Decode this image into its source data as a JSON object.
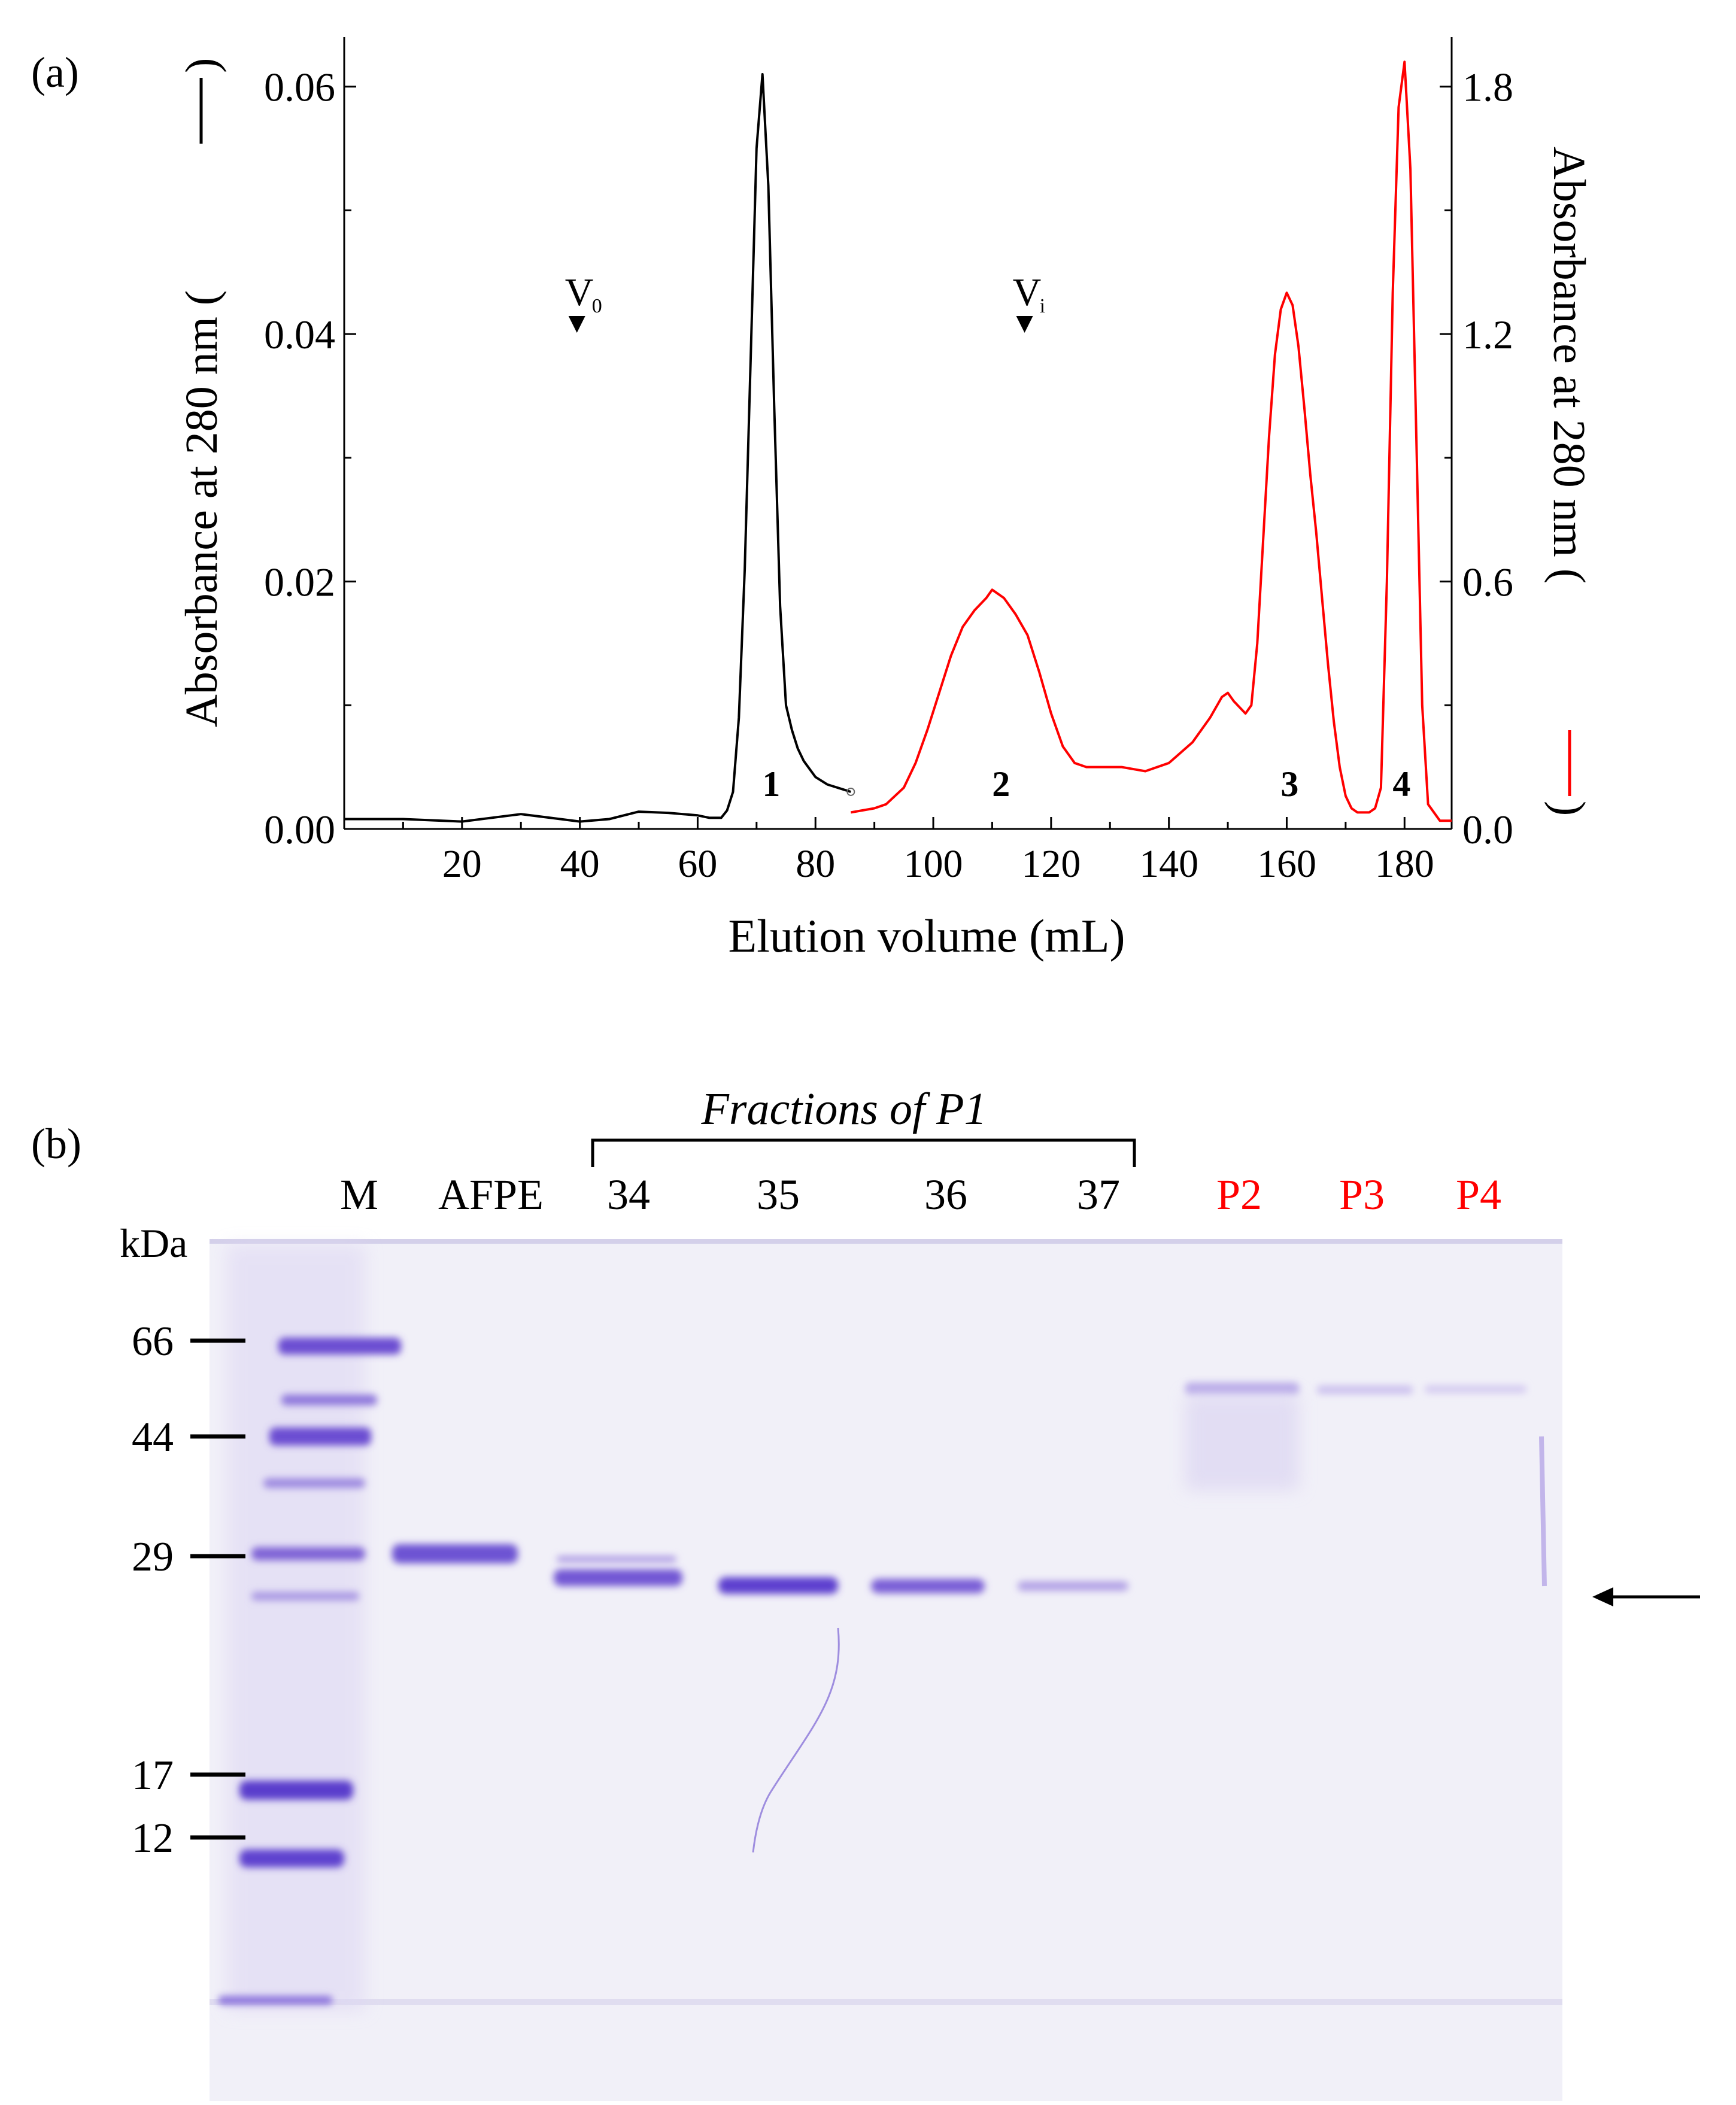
{
  "panel_a": {
    "label": "(a)",
    "left_axis_label": "Absorbance at 280 nm (",
    "left_axis_close": ")",
    "right_axis_label": "Absorbance at 280 nm (",
    "right_axis_close": ")",
    "x_axis_label": "Elution volume (mL)",
    "left_ticks": [
      "0.00",
      "0.02",
      "0.04",
      "0.06"
    ],
    "right_ticks": [
      "0.0",
      "0.6",
      "1.2",
      "1.8"
    ],
    "x_ticks": [
      "20",
      "40",
      "60",
      "80",
      "100",
      "120",
      "140",
      "160",
      "180"
    ],
    "markers": [
      {
        "label": "V",
        "sub": "0",
        "x": 39.5
      },
      {
        "label": "V",
        "sub": "i",
        "x": 115.5
      }
    ],
    "peak_labels": [
      {
        "label": "1",
        "x": 72.5
      },
      {
        "label": "2",
        "x": 111.5
      },
      {
        "label": "3",
        "x": 160.5
      },
      {
        "label": "4",
        "x": 179.5
      }
    ],
    "colors": {
      "series1": "#000000",
      "series2": "#ff0000",
      "axis": "#000000"
    }
  },
  "panel_b": {
    "label": "(b)",
    "bracket_label": "Fractions of P1",
    "kda_label": "kDa",
    "lanes": [
      {
        "label": "M",
        "color": "#000000"
      },
      {
        "label": "AFPE",
        "color": "#000000"
      },
      {
        "label": "34",
        "color": "#000000"
      },
      {
        "label": "35",
        "color": "#000000"
      },
      {
        "label": "36",
        "color": "#000000"
      },
      {
        "label": "37",
        "color": "#000000"
      },
      {
        "label": "P2",
        "color": "#ff0000"
      },
      {
        "label": "P3",
        "color": "#ff0000"
      },
      {
        "label": "P4",
        "color": "#ff0000"
      }
    ],
    "markers_kda": [
      "66",
      "44",
      "29",
      "17",
      "12"
    ],
    "arrow_icon": "left-arrow-icon",
    "gel_color": "#f2f1f8",
    "band_color": "#6a4fd0"
  },
  "chart_data": {
    "type": "line",
    "title": "",
    "xlabel": "Elution volume (mL)",
    "ylabel": "Absorbance at 280 nm",
    "y2label": "Absorbance at 280 nm",
    "xlim": [
      0,
      188
    ],
    "ylim": [
      0,
      0.064
    ],
    "y2lim": [
      0,
      1.92
    ],
    "series": [
      {
        "name": "Absorbance at 280 nm (black, left axis)",
        "axis": "left",
        "color": "#000000",
        "x": [
          0,
          10,
          20,
          30,
          35,
          40,
          45,
          50,
          55,
          60,
          62,
          64,
          65,
          66,
          67,
          68,
          69,
          70,
          71,
          72,
          73,
          74,
          75,
          76,
          77,
          78,
          80,
          82,
          84,
          86
        ],
        "y": [
          0.0008,
          0.0008,
          0.0006,
          0.0012,
          0.0009,
          0.0006,
          0.0008,
          0.0014,
          0.0013,
          0.0011,
          0.0009,
          0.0009,
          0.0015,
          0.003,
          0.009,
          0.021,
          0.038,
          0.055,
          0.061,
          0.052,
          0.034,
          0.018,
          0.01,
          0.008,
          0.0065,
          0.0055,
          0.0042,
          0.0036,
          0.0033,
          0.003
        ]
      },
      {
        "name": "Absorbance at 280 nm (red, right axis)",
        "axis": "right",
        "color": "#ff0000",
        "x": [
          86,
          90,
          92,
          95,
          97,
          99,
          101,
          103,
          105,
          107,
          109,
          110,
          112,
          114,
          116,
          118,
          120,
          122,
          124,
          126,
          128,
          132,
          136,
          140,
          144,
          147,
          149,
          150,
          151,
          153,
          154,
          155,
          156,
          157,
          158,
          159,
          160,
          161,
          162,
          163,
          164,
          165,
          166,
          167,
          168,
          169,
          170,
          171,
          172,
          174,
          175,
          176,
          177,
          178,
          179,
          180,
          181,
          182,
          183,
          184,
          186,
          188
        ],
        "y": [
          0.04,
          0.05,
          0.06,
          0.1,
          0.16,
          0.24,
          0.33,
          0.42,
          0.49,
          0.53,
          0.56,
          0.58,
          0.56,
          0.52,
          0.47,
          0.38,
          0.28,
          0.2,
          0.16,
          0.15,
          0.15,
          0.15,
          0.14,
          0.16,
          0.21,
          0.27,
          0.32,
          0.33,
          0.31,
          0.28,
          0.3,
          0.45,
          0.7,
          0.95,
          1.15,
          1.26,
          1.3,
          1.27,
          1.17,
          1.02,
          0.86,
          0.72,
          0.56,
          0.4,
          0.26,
          0.15,
          0.08,
          0.05,
          0.04,
          0.04,
          0.05,
          0.1,
          0.6,
          1.3,
          1.75,
          1.86,
          1.6,
          0.95,
          0.3,
          0.06,
          0.02,
          0.02
        ]
      }
    ]
  }
}
